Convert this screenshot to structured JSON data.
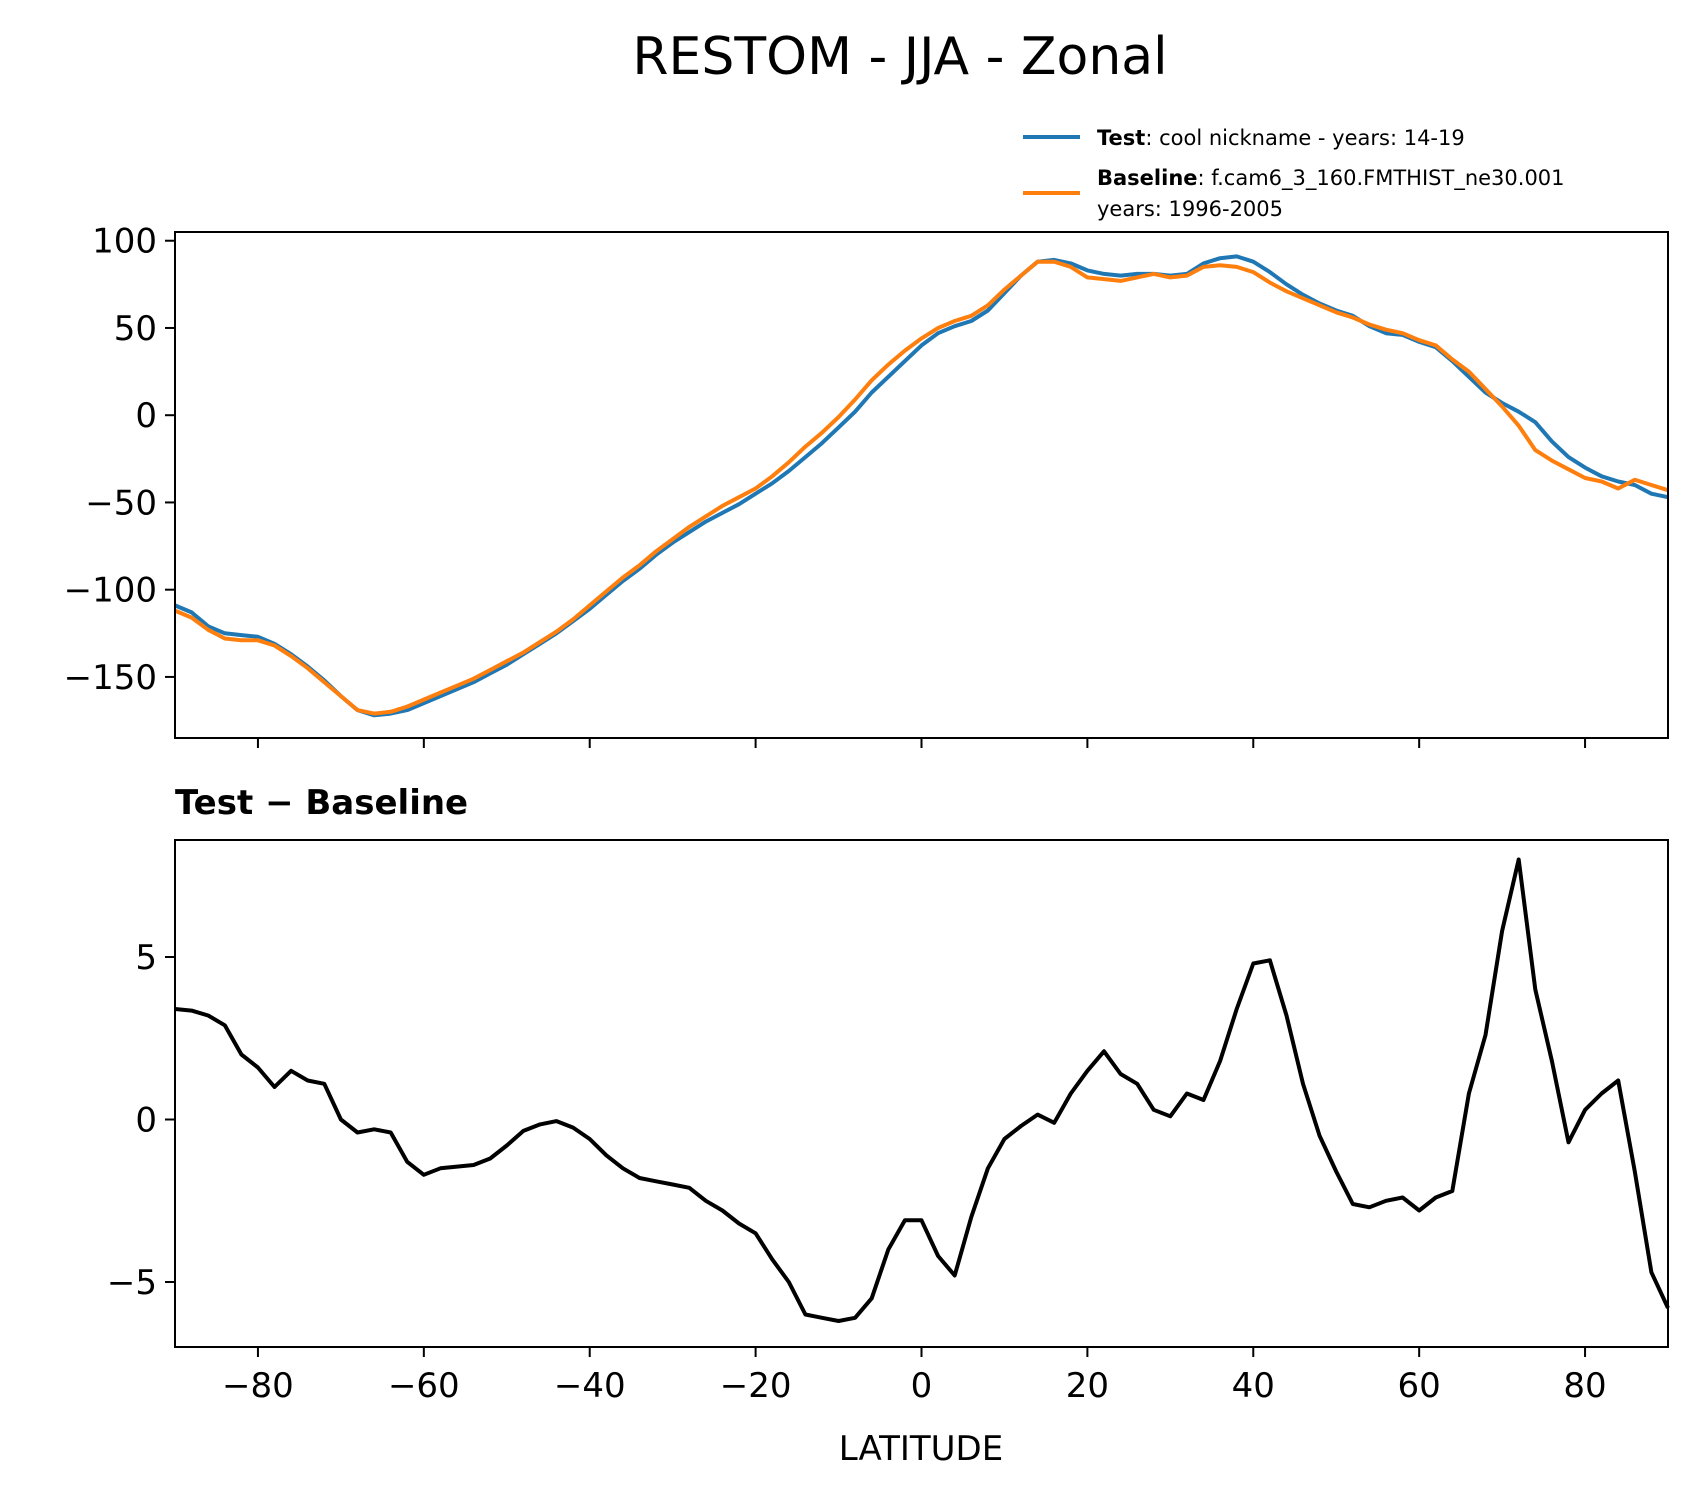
{
  "chart_data": [
    {
      "type": "line",
      "title": "RESTOM - JJA - Zonal",
      "xlim": [
        -90,
        90
      ],
      "ylim": [
        -185,
        105
      ],
      "yticks": [
        100,
        50,
        0,
        -50,
        -100,
        -150
      ],
      "xticks": [
        -80,
        -60,
        -40,
        -20,
        0,
        20,
        40,
        60,
        80
      ],
      "legend": {
        "placement": "above-right",
        "entries": [
          {
            "name": "Test",
            "desc": ": cool nickname - years: 14-19",
            "desc2": ""
          },
          {
            "name": "Baseline",
            "desc": ": f.cam6_3_160.FMTHIST_ne30.001",
            "desc2": "years: 1996-2005"
          }
        ]
      },
      "x": [
        -90,
        -88,
        -86,
        -84,
        -82,
        -80,
        -78,
        -76,
        -74,
        -72,
        -70,
        -68,
        -66,
        -64,
        -62,
        -60,
        -58,
        -56,
        -54,
        -52,
        -50,
        -48,
        -46,
        -44,
        -42,
        -40,
        -38,
        -36,
        -34,
        -32,
        -30,
        -28,
        -26,
        -24,
        -22,
        -20,
        -18,
        -16,
        -14,
        -12,
        -10,
        -8,
        -6,
        -4,
        -2,
        0,
        2,
        4,
        6,
        8,
        10,
        12,
        14,
        16,
        18,
        20,
        22,
        24,
        26,
        28,
        30,
        32,
        34,
        36,
        38,
        40,
        42,
        44,
        46,
        48,
        50,
        52,
        54,
        56,
        58,
        60,
        62,
        64,
        66,
        68,
        70,
        72,
        74,
        76,
        78,
        80,
        82,
        84,
        86,
        88,
        90
      ],
      "series": [
        {
          "name": "Test",
          "color": "#1f77b4",
          "values": [
            -109,
            -113,
            -121,
            -125,
            -126,
            -127,
            -131,
            -137,
            -144,
            -152,
            -161,
            -169,
            -172,
            -171,
            -169,
            -165,
            -161,
            -157,
            -153,
            -148,
            -143,
            -137,
            -131,
            -125,
            -118,
            -111,
            -103,
            -95,
            -88,
            -80,
            -73,
            -67,
            -61,
            -56,
            -51,
            -45,
            -39,
            -32,
            -24,
            -16,
            -7,
            2,
            13,
            22,
            31,
            40,
            47,
            51,
            54,
            60,
            70,
            80,
            88,
            89,
            87,
            83,
            81,
            80,
            81,
            81,
            80,
            81,
            87,
            90,
            91,
            88,
            82,
            75,
            69,
            64,
            60,
            57,
            51,
            47,
            46,
            42,
            39,
            31,
            22,
            13,
            7,
            2,
            -4,
            -15,
            -24,
            -30,
            -35,
            -38,
            -40,
            -45,
            -47
          ]
        },
        {
          "name": "Baseline",
          "color": "#ff7f0e",
          "values": [
            -112,
            -116,
            -123,
            -128,
            -129,
            -129,
            -132,
            -138,
            -145,
            -153,
            -161,
            -169,
            -171,
            -170,
            -167,
            -163,
            -159,
            -155,
            -151,
            -146,
            -141,
            -136,
            -130,
            -124,
            -117,
            -109,
            -101,
            -93,
            -86,
            -78,
            -71,
            -64,
            -58,
            -52,
            -47,
            -42,
            -35,
            -27,
            -18,
            -10,
            -1,
            9,
            20,
            29,
            37,
            44,
            50,
            54,
            57,
            63,
            72,
            80,
            88,
            88,
            85,
            79,
            78,
            77,
            79,
            81,
            79,
            80,
            85,
            86,
            85,
            82,
            76,
            71,
            67,
            63,
            59,
            56,
            52,
            49,
            47,
            43,
            40,
            32,
            25,
            15,
            5,
            -6,
            -20,
            -26,
            -31,
            -36,
            -38,
            -42,
            -37,
            -40,
            -43
          ]
        }
      ]
    },
    {
      "type": "line",
      "title": "Test − Baseline",
      "xlabel": "LATITUDE",
      "xlim": [
        -90,
        90
      ],
      "ylim": [
        -7.0,
        8.6
      ],
      "yticks": [
        5,
        0,
        -5
      ],
      "xticks": [
        -80,
        -60,
        -40,
        -20,
        0,
        20,
        40,
        60,
        80
      ],
      "x": [
        -90,
        -88,
        -86,
        -84,
        -82,
        -80,
        -78,
        -76,
        -74,
        -72,
        -70,
        -68,
        -66,
        -64,
        -62,
        -60,
        -58,
        -56,
        -54,
        -52,
        -50,
        -48,
        -46,
        -44,
        -42,
        -40,
        -38,
        -36,
        -34,
        -32,
        -30,
        -28,
        -26,
        -24,
        -22,
        -20,
        -18,
        -16,
        -14,
        -12,
        -10,
        -8,
        -6,
        -4,
        -2,
        0,
        2,
        4,
        6,
        8,
        10,
        12,
        14,
        16,
        18,
        20,
        22,
        24,
        26,
        28,
        30,
        32,
        34,
        36,
        38,
        40,
        42,
        44,
        46,
        48,
        50,
        52,
        54,
        56,
        58,
        60,
        62,
        64,
        66,
        68,
        70,
        72,
        74,
        76,
        78,
        80,
        82,
        84,
        86,
        88,
        90
      ],
      "series": [
        {
          "name": "Test − Baseline",
          "color": "#000000",
          "values": [
            3.4,
            3.35,
            3.2,
            2.9,
            2.0,
            1.6,
            1.0,
            1.5,
            1.2,
            1.1,
            0.0,
            -0.4,
            -0.3,
            -0.4,
            -1.3,
            -1.7,
            -1.5,
            -1.45,
            -1.4,
            -1.2,
            -0.8,
            -0.35,
            -0.15,
            -0.05,
            -0.25,
            -0.6,
            -1.1,
            -1.5,
            -1.8,
            -1.9,
            -2.0,
            -2.1,
            -2.5,
            -2.8,
            -3.2,
            -3.5,
            -4.3,
            -5.0,
            -6.0,
            -6.1,
            -6.2,
            -6.1,
            -5.5,
            -4.0,
            -3.1,
            -3.1,
            -4.2,
            -4.8,
            -3.0,
            -1.5,
            -0.6,
            -0.2,
            0.15,
            -0.1,
            0.8,
            1.5,
            2.1,
            1.4,
            1.1,
            0.3,
            0.1,
            0.8,
            0.6,
            1.8,
            3.4,
            4.8,
            4.9,
            3.2,
            1.1,
            -0.5,
            -1.6,
            -2.6,
            -2.7,
            -2.5,
            -2.4,
            -2.8,
            -2.4,
            -2.2,
            0.8,
            2.6,
            5.8,
            8.0,
            4.0,
            1.8,
            -0.7,
            0.3,
            0.8,
            1.2,
            -1.6,
            -4.7,
            -5.8
          ]
        }
      ]
    }
  ]
}
